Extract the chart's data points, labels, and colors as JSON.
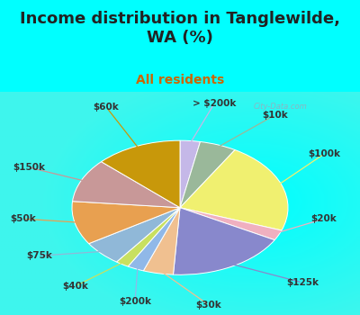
{
  "title": "Income distribution in Tanglewilde,\nWA (%)",
  "subtitle": "All residents",
  "bg_top": "#00FFFF",
  "bg_chart": "#d8eeda",
  "labels": [
    "> $200k",
    "$10k",
    "$100k",
    "$20k",
    "$125k",
    "$30k",
    "$200k",
    "$40k",
    "$75k",
    "$50k",
    "$150k",
    "$60k"
  ],
  "values": [
    3.0,
    5.5,
    22.0,
    2.5,
    18.0,
    4.5,
    2.5,
    2.0,
    6.0,
    10.5,
    10.5,
    13.0
  ],
  "colors": [
    "#c5b8e8",
    "#9ab89a",
    "#f0f070",
    "#f0b0c0",
    "#8888cc",
    "#f0c090",
    "#90b8e8",
    "#c8e060",
    "#90b8d8",
    "#e8a050",
    "#c89898",
    "#c8980a"
  ],
  "startangle": 90,
  "label_fontsize": 7.5,
  "title_fontsize": 13,
  "subtitle_fontsize": 10,
  "title_color": "#222222",
  "subtitle_color": "#cc6600",
  "watermark": "City-Data.com",
  "label_color": "#333333"
}
